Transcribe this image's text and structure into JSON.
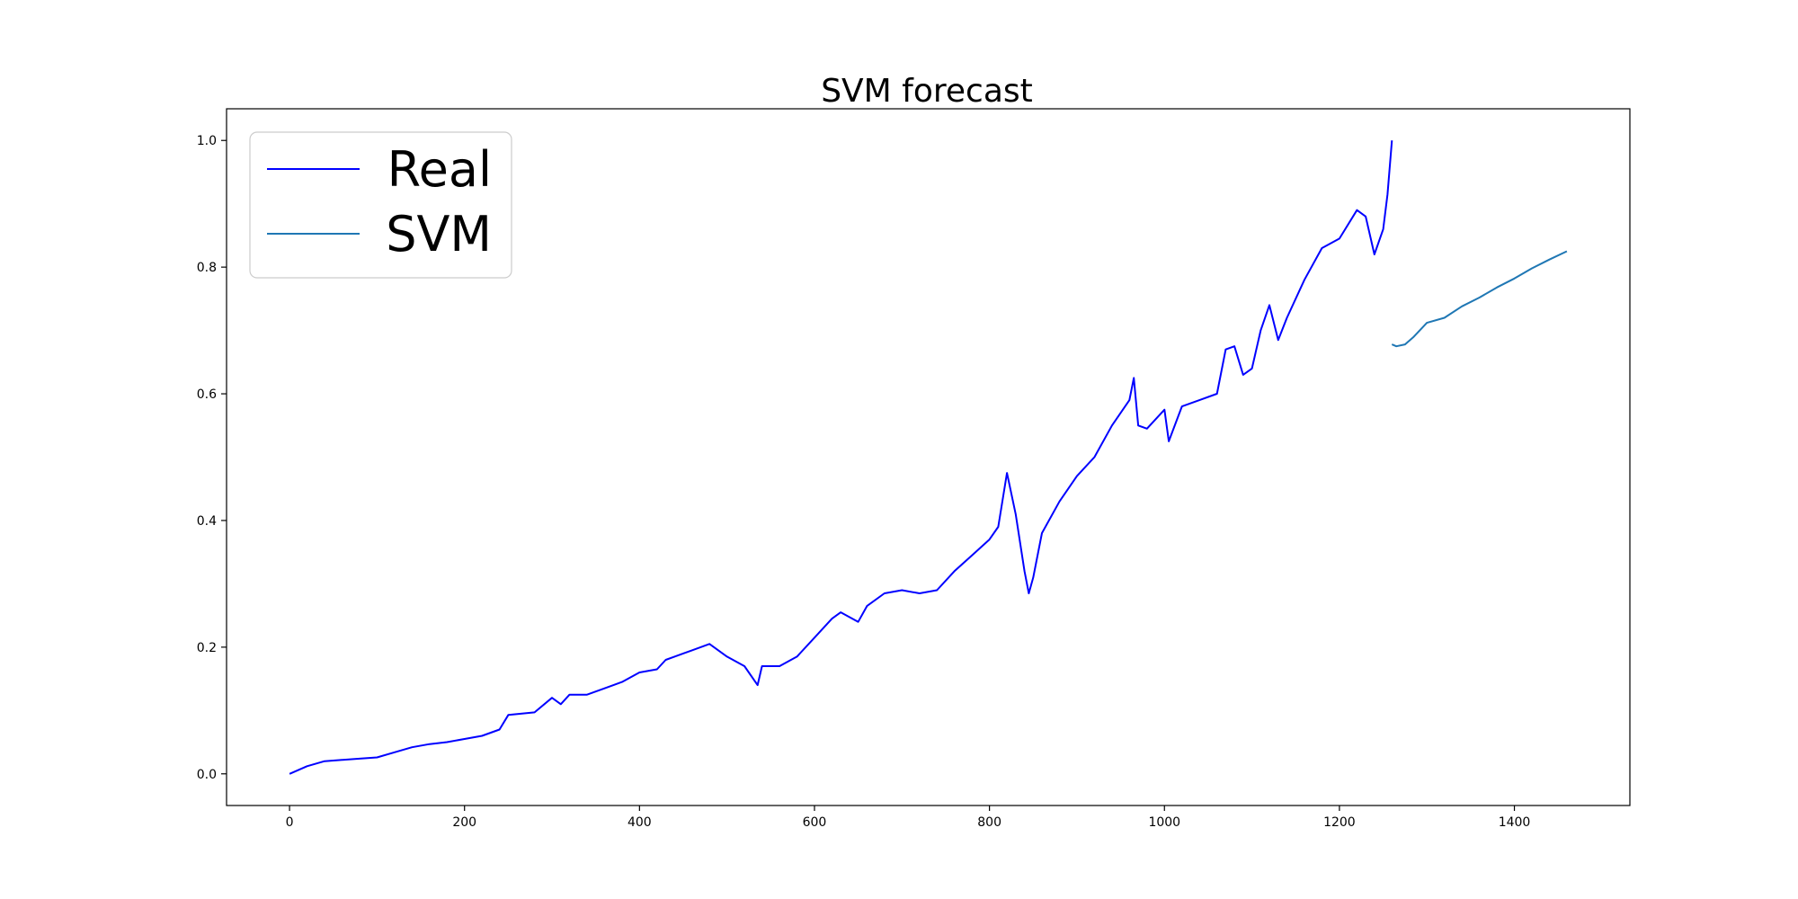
{
  "chart_data": {
    "type": "line",
    "title": "SVM forecast",
    "xlabel": "",
    "ylabel": "",
    "xlim": [
      -72,
      1532
    ],
    "ylim": [
      -0.05,
      1.05
    ],
    "xticks": [
      0,
      200,
      400,
      600,
      800,
      1000,
      1200,
      1400
    ],
    "xtick_labels": [
      "0",
      "200",
      "400",
      "600",
      "800",
      "1000",
      "1200",
      "1400"
    ],
    "yticks": [
      0.0,
      0.2,
      0.4,
      0.6,
      0.8,
      1.0
    ],
    "ytick_labels": [
      "0.0",
      "0.2",
      "0.4",
      "0.6",
      "0.8",
      "1.0"
    ],
    "grid": false,
    "legend_position": "top-left",
    "series": [
      {
        "name": "Real",
        "color": "#0000ff",
        "x": [
          0,
          20,
          40,
          60,
          80,
          100,
          120,
          140,
          160,
          180,
          200,
          220,
          240,
          250,
          280,
          300,
          310,
          320,
          340,
          360,
          380,
          400,
          420,
          430,
          440,
          460,
          480,
          500,
          520,
          535,
          540,
          560,
          580,
          600,
          620,
          630,
          650,
          660,
          680,
          700,
          720,
          740,
          760,
          780,
          800,
          810,
          820,
          830,
          840,
          845,
          850,
          860,
          880,
          900,
          920,
          940,
          960,
          965,
          970,
          980,
          1000,
          1005,
          1020,
          1040,
          1060,
          1070,
          1080,
          1090,
          1100,
          1110,
          1120,
          1130,
          1140,
          1160,
          1180,
          1200,
          1220,
          1230,
          1240,
          1250,
          1255,
          1260
        ],
        "y": [
          0.0,
          0.012,
          0.02,
          0.022,
          0.024,
          0.026,
          0.034,
          0.042,
          0.047,
          0.05,
          0.055,
          0.06,
          0.07,
          0.093,
          0.097,
          0.12,
          0.11,
          0.125,
          0.125,
          0.135,
          0.145,
          0.16,
          0.165,
          0.18,
          0.185,
          0.195,
          0.205,
          0.185,
          0.17,
          0.14,
          0.17,
          0.17,
          0.185,
          0.215,
          0.245,
          0.255,
          0.24,
          0.265,
          0.285,
          0.29,
          0.285,
          0.29,
          0.32,
          0.345,
          0.37,
          0.39,
          0.475,
          0.41,
          0.32,
          0.285,
          0.31,
          0.38,
          0.43,
          0.47,
          0.5,
          0.55,
          0.59,
          0.625,
          0.55,
          0.545,
          0.575,
          0.525,
          0.58,
          0.59,
          0.6,
          0.67,
          0.675,
          0.63,
          0.64,
          0.7,
          0.74,
          0.685,
          0.72,
          0.78,
          0.83,
          0.845,
          0.89,
          0.88,
          0.82,
          0.86,
          0.915,
          1.0
        ]
      },
      {
        "name": "SVM",
        "color": "#1f77b4",
        "x": [
          1260,
          1265,
          1275,
          1285,
          1300,
          1320,
          1340,
          1360,
          1380,
          1400,
          1420,
          1440,
          1460
        ],
        "y": [
          0.678,
          0.675,
          0.678,
          0.69,
          0.712,
          0.72,
          0.738,
          0.752,
          0.768,
          0.782,
          0.798,
          0.812,
          0.825
        ]
      }
    ]
  }
}
